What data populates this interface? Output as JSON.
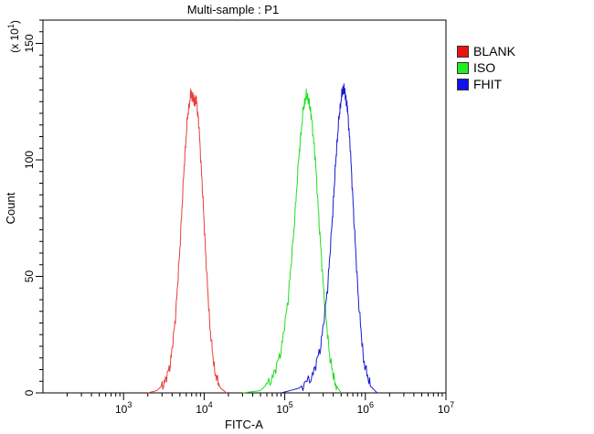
{
  "chart_data": {
    "type": "line",
    "title": "Multi-sample : P1",
    "xlabel": "FITC-A",
    "ylabel": "Count",
    "y_multiplier_label": "(x 10",
    "y_multiplier_exp": "1",
    "x_scale": "log",
    "xlim": [
      100,
      10000000
    ],
    "ylim": [
      0,
      160
    ],
    "x_ticks": [
      {
        "base": "10",
        "exp": "3",
        "value": 1000
      },
      {
        "base": "10",
        "exp": "4",
        "value": 10000
      },
      {
        "base": "10",
        "exp": "5",
        "value": 100000
      },
      {
        "base": "10",
        "exp": "6",
        "value": 1000000
      },
      {
        "base": "10",
        "exp": "7",
        "value": 10000000
      }
    ],
    "y_ticks": [
      0,
      50,
      100,
      150
    ],
    "grid": false,
    "legend_position": "right",
    "series": [
      {
        "name": "BLANK",
        "color": "#e8403c",
        "x": [
          2000,
          2600,
          3200,
          3800,
          4400,
          5000,
          5600,
          6200,
          6800,
          7200,
          7600,
          8000,
          8600,
          9500,
          10500,
          11800,
          13500,
          16000,
          19000
        ],
        "y": [
          0,
          1,
          4,
          12,
          32,
          62,
          95,
          118,
          128,
          127,
          125,
          126,
          115,
          88,
          58,
          28,
          9,
          2,
          0
        ]
      },
      {
        "name": "ISO",
        "color": "#22dd22",
        "x": [
          30000,
          50000,
          70000,
          90000,
          110000,
          130000,
          150000,
          170000,
          185000,
          200000,
          215000,
          240000,
          270000,
          310000,
          360000,
          420000,
          500000
        ],
        "y": [
          0,
          1,
          6,
          18,
          40,
          70,
          102,
          122,
          128,
          125,
          118,
          100,
          70,
          40,
          16,
          4,
          0
        ]
      },
      {
        "name": "FHIT",
        "color": "#1a1ad0",
        "x": [
          90000,
          150000,
          220000,
          280000,
          340000,
          390000,
          430000,
          470000,
          510000,
          540000,
          570000,
          600000,
          650000,
          720000,
          820000,
          950000,
          1150000,
          1400000
        ],
        "y": [
          0,
          2,
          7,
          20,
          45,
          75,
          100,
          118,
          128,
          131,
          127,
          122,
          105,
          75,
          40,
          14,
          3,
          0
        ]
      }
    ]
  }
}
